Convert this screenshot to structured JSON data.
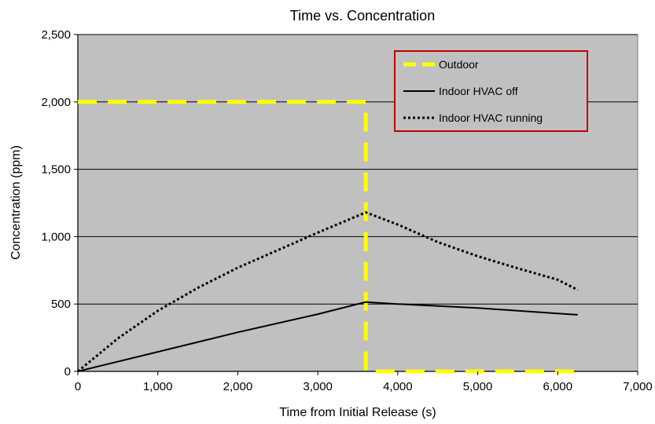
{
  "chart_data": {
    "type": "line",
    "title": "Time vs. Concentration",
    "xlabel": "Time from Initial Release (s)",
    "ylabel": "Concentration (ppm)",
    "xlim": [
      0,
      7000
    ],
    "ylim": [
      0,
      2500
    ],
    "x_ticks": [
      0,
      1000,
      2000,
      3000,
      4000,
      5000,
      6000,
      7000
    ],
    "y_ticks": [
      0,
      500,
      1000,
      1500,
      2000,
      2500
    ],
    "x_tick_labels": [
      "0",
      "1,000",
      "2,000",
      "3,000",
      "4,000",
      "5,000",
      "6,000",
      "7,000"
    ],
    "y_tick_labels": [
      "0",
      "500",
      "1,000",
      "1,500",
      "2,000",
      "2,500"
    ],
    "grid": "horizontal",
    "plot_background": "#c0c0c0",
    "legend_position": "top-right",
    "legend_border_color": "#c00000",
    "series": [
      {
        "name": "Outdoor",
        "color": "#ffff00",
        "style": "dashed",
        "x": [
          0,
          3600,
          3600,
          6250
        ],
        "y": [
          2000,
          2000,
          0,
          0
        ]
      },
      {
        "name": "Indoor HVAC off",
        "color": "#000000",
        "style": "solid",
        "x": [
          0,
          1000,
          2000,
          3000,
          3600,
          4000,
          5000,
          6000,
          6250
        ],
        "y": [
          0,
          145,
          290,
          425,
          515,
          500,
          470,
          430,
          420
        ]
      },
      {
        "name": "Indoor HVAC running",
        "color": "#000000",
        "style": "dotted",
        "x": [
          0,
          500,
          1000,
          1500,
          2000,
          2500,
          3000,
          3600,
          4000,
          4500,
          5000,
          5500,
          6000,
          6250
        ],
        "y": [
          0,
          245,
          450,
          620,
          770,
          900,
          1030,
          1180,
          1090,
          960,
          855,
          765,
          680,
          605
        ]
      }
    ]
  }
}
